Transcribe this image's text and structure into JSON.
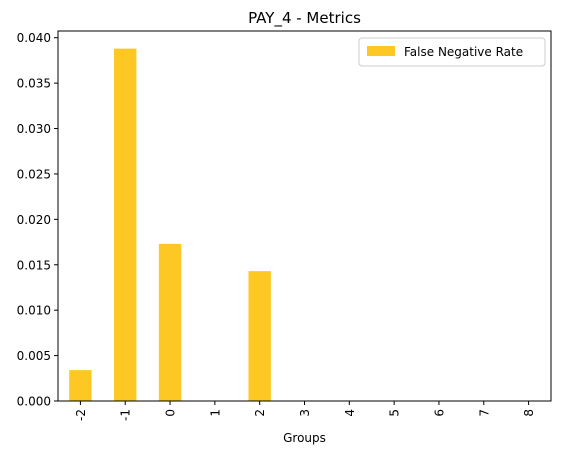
{
  "chart_data": {
    "type": "bar",
    "title": "PAY_4 - Metrics",
    "xlabel": "Groups",
    "ylabel": "",
    "categories": [
      "-2",
      "-1",
      "0",
      "1",
      "2",
      "3",
      "4",
      "5",
      "6",
      "7",
      "8"
    ],
    "series": [
      {
        "name": "False Negative Rate",
        "values": [
          0.0034,
          0.0388,
          0.0173,
          0.0,
          0.0143,
          0.0,
          0.0,
          0.0,
          0.0,
          0.0,
          0.0
        ],
        "color": "#fdc823"
      }
    ],
    "ylim": [
      0,
      0.04074
    ],
    "yticks": [
      0.0,
      0.005,
      0.01,
      0.015,
      0.02,
      0.025,
      0.03,
      0.035,
      0.04
    ],
    "ytick_labels": [
      "0.000",
      "0.005",
      "0.010",
      "0.015",
      "0.020",
      "0.025",
      "0.030",
      "0.035",
      "0.040"
    ],
    "grid": false,
    "legend_position": "top-right"
  }
}
